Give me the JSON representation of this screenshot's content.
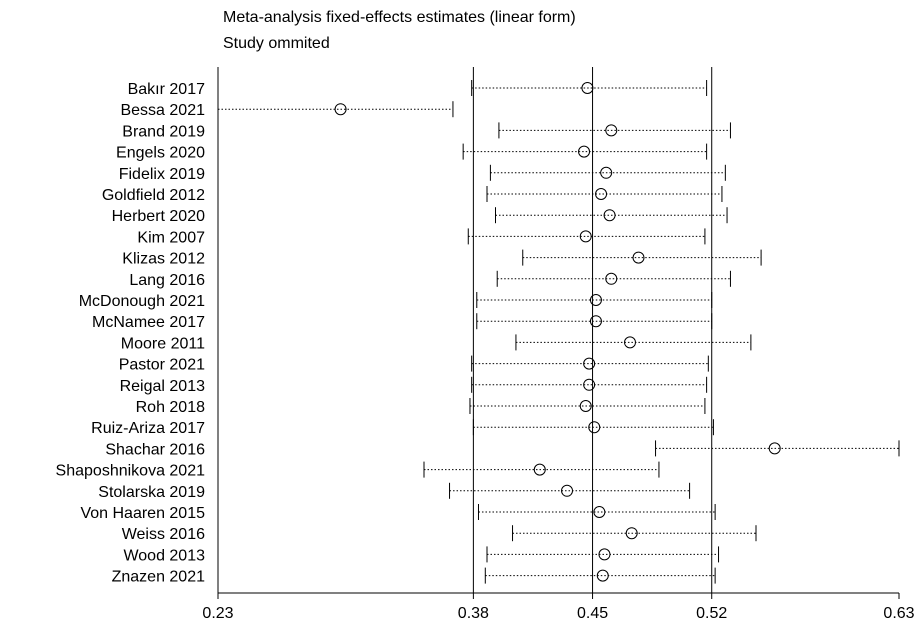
{
  "title": "Meta-analysis fixed-effects estimates (linear form)",
  "subtitle": "Study ommited",
  "chart_data": {
    "type": "scatter",
    "title": "Meta-analysis fixed-effects estimates (linear form)",
    "subtitle": "Study ommited",
    "xlabel": "",
    "ylabel": "",
    "xlim": [
      0.23,
      0.63
    ],
    "xticks": [
      0.23,
      0.38,
      0.45,
      0.52,
      0.63
    ],
    "xtick_labels": [
      "0.23",
      "0.38",
      "0.45",
      "0.52",
      "0.63"
    ],
    "reference_lines": [
      0.38,
      0.45,
      0.52
    ],
    "grid": false,
    "legend": "none",
    "studies": [
      {
        "label": "Bakır 2017",
        "estimate": 0.447,
        "lower": 0.379,
        "upper": 0.517
      },
      {
        "label": "Bessa 2021",
        "estimate": 0.302,
        "lower": 0.23,
        "upper": 0.368
      },
      {
        "label": "Brand 2019",
        "estimate": 0.461,
        "lower": 0.395,
        "upper": 0.531
      },
      {
        "label": "Engels 2020",
        "estimate": 0.445,
        "lower": 0.374,
        "upper": 0.517
      },
      {
        "label": "Fidelix 2019",
        "estimate": 0.458,
        "lower": 0.39,
        "upper": 0.528
      },
      {
        "label": "Goldfield 2012",
        "estimate": 0.455,
        "lower": 0.388,
        "upper": 0.526
      },
      {
        "label": "Herbert 2020",
        "estimate": 0.46,
        "lower": 0.393,
        "upper": 0.529
      },
      {
        "label": "Kim 2007",
        "estimate": 0.446,
        "lower": 0.377,
        "upper": 0.516
      },
      {
        "label": "Klizas 2012",
        "estimate": 0.477,
        "lower": 0.409,
        "upper": 0.549
      },
      {
        "label": "Lang 2016",
        "estimate": 0.461,
        "lower": 0.394,
        "upper": 0.531
      },
      {
        "label": "McDonough 2021",
        "estimate": 0.452,
        "lower": 0.382,
        "upper": 0.52
      },
      {
        "label": "McNamee 2017",
        "estimate": 0.452,
        "lower": 0.382,
        "upper": 0.52
      },
      {
        "label": "Moore 2011",
        "estimate": 0.472,
        "lower": 0.405,
        "upper": 0.543
      },
      {
        "label": "Pastor 2021",
        "estimate": 0.448,
        "lower": 0.379,
        "upper": 0.518
      },
      {
        "label": "Reigal 2013",
        "estimate": 0.448,
        "lower": 0.379,
        "upper": 0.517
      },
      {
        "label": "Roh 2018",
        "estimate": 0.446,
        "lower": 0.378,
        "upper": 0.516
      },
      {
        "label": "Ruiz-Ariza 2017",
        "estimate": 0.451,
        "lower": 0.38,
        "upper": 0.521
      },
      {
        "label": "Shachar 2016",
        "estimate": 0.557,
        "lower": 0.487,
        "upper": 0.63
      },
      {
        "label": "Shaposhnikova 2021",
        "estimate": 0.419,
        "lower": 0.351,
        "upper": 0.489
      },
      {
        "label": "Stolarska 2019",
        "estimate": 0.435,
        "lower": 0.366,
        "upper": 0.507
      },
      {
        "label": "Von Haaren 2015",
        "estimate": 0.454,
        "lower": 0.383,
        "upper": 0.522
      },
      {
        "label": "Weiss 2016",
        "estimate": 0.473,
        "lower": 0.403,
        "upper": 0.546
      },
      {
        "label": "Wood 2013",
        "estimate": 0.457,
        "lower": 0.388,
        "upper": 0.524
      },
      {
        "label": "Znazen 2021",
        "estimate": 0.456,
        "lower": 0.387,
        "upper": 0.522
      }
    ]
  }
}
